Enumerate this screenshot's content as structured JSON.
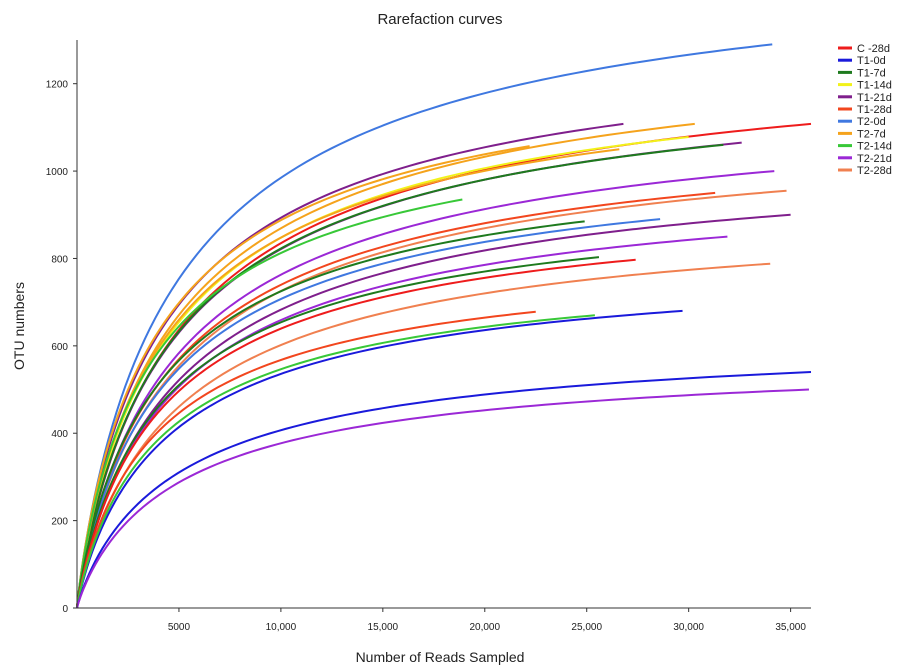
{
  "chart_data": {
    "type": "line",
    "title": "Rarefaction curves",
    "xlabel": "Number of Reads Sampled",
    "ylabel": "OTU numbers",
    "xlim": [
      0,
      36000
    ],
    "ylim": [
      0,
      1300
    ],
    "xticks": [
      5000,
      10000,
      15000,
      20000,
      25000,
      30000,
      35000
    ],
    "xtick_labels": [
      "5000",
      "10,000",
      "15,000",
      "20,000",
      "25,000",
      "30,000",
      "35,000"
    ],
    "yticks": [
      0,
      200,
      400,
      600,
      800,
      1000,
      1200
    ],
    "ytick_labels": [
      "0",
      "200",
      "400",
      "600",
      "800",
      "1000",
      "1200"
    ],
    "grid": false,
    "legend_position": "top-right",
    "legend": [
      {
        "label": "C -28d",
        "color": "#ee1c1c"
      },
      {
        "label": "T1-0d",
        "color": "#1a1adb"
      },
      {
        "label": "T1-7d",
        "color": "#1e7a1e"
      },
      {
        "label": "T1-14d",
        "color": "#f2f21a"
      },
      {
        "label": "T1-21d",
        "color": "#7f1f8c"
      },
      {
        "label": "T1-28d",
        "color": "#f2461e"
      },
      {
        "label": "T2-0d",
        "color": "#3f78e0"
      },
      {
        "label": "T2-7d",
        "color": "#f5a31c"
      },
      {
        "label": "T2-14d",
        "color": "#38c838"
      },
      {
        "label": "T2-21d",
        "color": "#9b28d6"
      },
      {
        "label": "T2-28d",
        "color": "#f08050"
      }
    ],
    "series": [
      {
        "color": "#3f78e0",
        "x": [
          0,
          34100
        ],
        "y_end": 1290
      },
      {
        "color": "#ee1c1c",
        "x": [
          0,
          36000
        ],
        "y_end": 1108
      },
      {
        "color": "#f5a31c",
        "x": [
          0,
          30300
        ],
        "y_end": 1108
      },
      {
        "color": "#7f1f8c",
        "x": [
          0,
          26800
        ],
        "y_end": 1108
      },
      {
        "color": "#f2f21a",
        "x": [
          0,
          30000
        ],
        "y_end": 1078
      },
      {
        "color": "#7f1f8c",
        "x": [
          0,
          32600
        ],
        "y_end": 1065
      },
      {
        "color": "#1e7a1e",
        "x": [
          0,
          31700
        ],
        "y_end": 1060
      },
      {
        "color": "#f5a31c",
        "x": [
          0,
          22200
        ],
        "y_end": 1057
      },
      {
        "color": "#f5a31c",
        "x": [
          0,
          26600
        ],
        "y_end": 1050
      },
      {
        "color": "#9b28d6",
        "x": [
          0,
          34200
        ],
        "y_end": 1000
      },
      {
        "color": "#f08050",
        "x": [
          0,
          34800
        ],
        "y_end": 955
      },
      {
        "color": "#f2461e",
        "x": [
          0,
          31300
        ],
        "y_end": 950
      },
      {
        "color": "#38c838",
        "x": [
          0,
          18900
        ],
        "y_end": 935
      },
      {
        "color": "#7f1f8c",
        "x": [
          0,
          35000
        ],
        "y_end": 900
      },
      {
        "color": "#3f78e0",
        "x": [
          0,
          28600
        ],
        "y_end": 890
      },
      {
        "color": "#1e7a1e",
        "x": [
          0,
          24900
        ],
        "y_end": 885
      },
      {
        "color": "#9b28d6",
        "x": [
          0,
          31900
        ],
        "y_end": 850
      },
      {
        "color": "#1e7a1e",
        "x": [
          0,
          25600
        ],
        "y_end": 803
      },
      {
        "color": "#ee1c1c",
        "x": [
          0,
          27400
        ],
        "y_end": 797
      },
      {
        "color": "#f08050",
        "x": [
          0,
          34000
        ],
        "y_end": 788
      },
      {
        "color": "#1a1adb",
        "x": [
          0,
          29700
        ],
        "y_end": 680
      },
      {
        "color": "#f2461e",
        "x": [
          0,
          22500
        ],
        "y_end": 678
      },
      {
        "color": "#38c838",
        "x": [
          0,
          25400
        ],
        "y_end": 670
      },
      {
        "color": "#1a1adb",
        "x": [
          0,
          36000
        ],
        "y_end": 540
      },
      {
        "color": "#9b28d6",
        "x": [
          0,
          35900
        ],
        "y_end": 500
      }
    ]
  }
}
